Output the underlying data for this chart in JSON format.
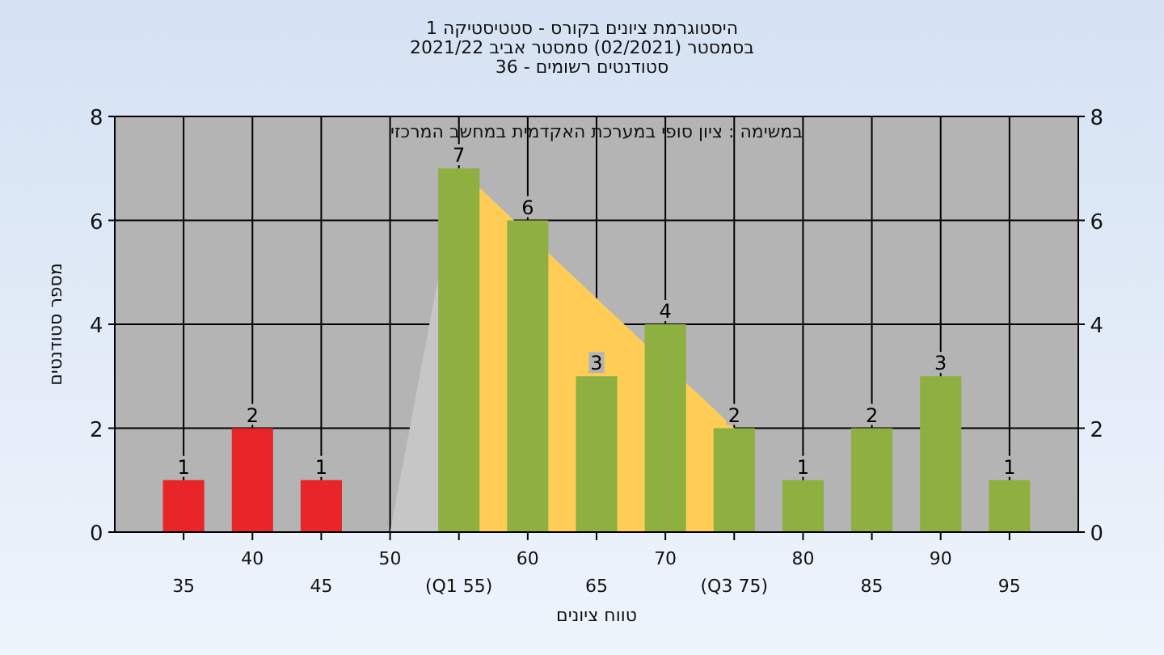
{
  "chart_data": {
    "type": "bar",
    "title": "היסטוגרמת ציונים בקורס - סטטיסטיקה 1",
    "subtitle": "בסמסטר  (02/2021)  סמסטר אביב 2021/22\nסטודנטים רשומים - 36",
    "xlabel": "טווח ציונים",
    "ylabel": "מספר סטודנטים",
    "annotations": [
      "במשימה : ציון סופי במערכת האקדמית במחשב המרכזי"
    ],
    "categories": [
      "35",
      "40",
      "45",
      "50",
      "(Q1 55)",
      "60",
      "65",
      "70",
      "(Q3 75)",
      "80",
      "85",
      "90",
      "95"
    ],
    "series": [
      {
        "type": "area",
        "color": "#c6c6c6",
        "values": [
          null,
          null,
          null,
          0,
          7,
          null,
          null,
          null,
          2,
          null,
          null,
          null,
          null
        ]
      },
      {
        "type": "area",
        "color": "#ffcc55",
        "values": [
          null,
          null,
          null,
          null,
          7,
          null,
          null,
          null,
          2,
          null,
          null,
          null,
          null
        ]
      },
      {
        "colors": [
          "#e8262a",
          "#e8262a",
          "#e8262a",
          "#8db040",
          "#8db040",
          "#8db040",
          "#8db040",
          "#8db040",
          "#8db040",
          "#8db040",
          "#8db040",
          "#8db040",
          "#8db040"
        ],
        "values": [
          1,
          2,
          1,
          0,
          7,
          6,
          3,
          4,
          2,
          1,
          2,
          3,
          1
        ],
        "value_labels": [
          "1",
          "2",
          "1",
          null,
          "7",
          "6",
          "3",
          "4",
          "2",
          "1",
          "2",
          "3",
          "1"
        ]
      }
    ],
    "ylim": [
      0,
      8
    ],
    "yticks": [
      0,
      2,
      4,
      6,
      8
    ],
    "y2lim": [
      0,
      8
    ],
    "y2ticks": [
      0,
      2,
      4,
      6,
      8
    ],
    "grid": true
  }
}
